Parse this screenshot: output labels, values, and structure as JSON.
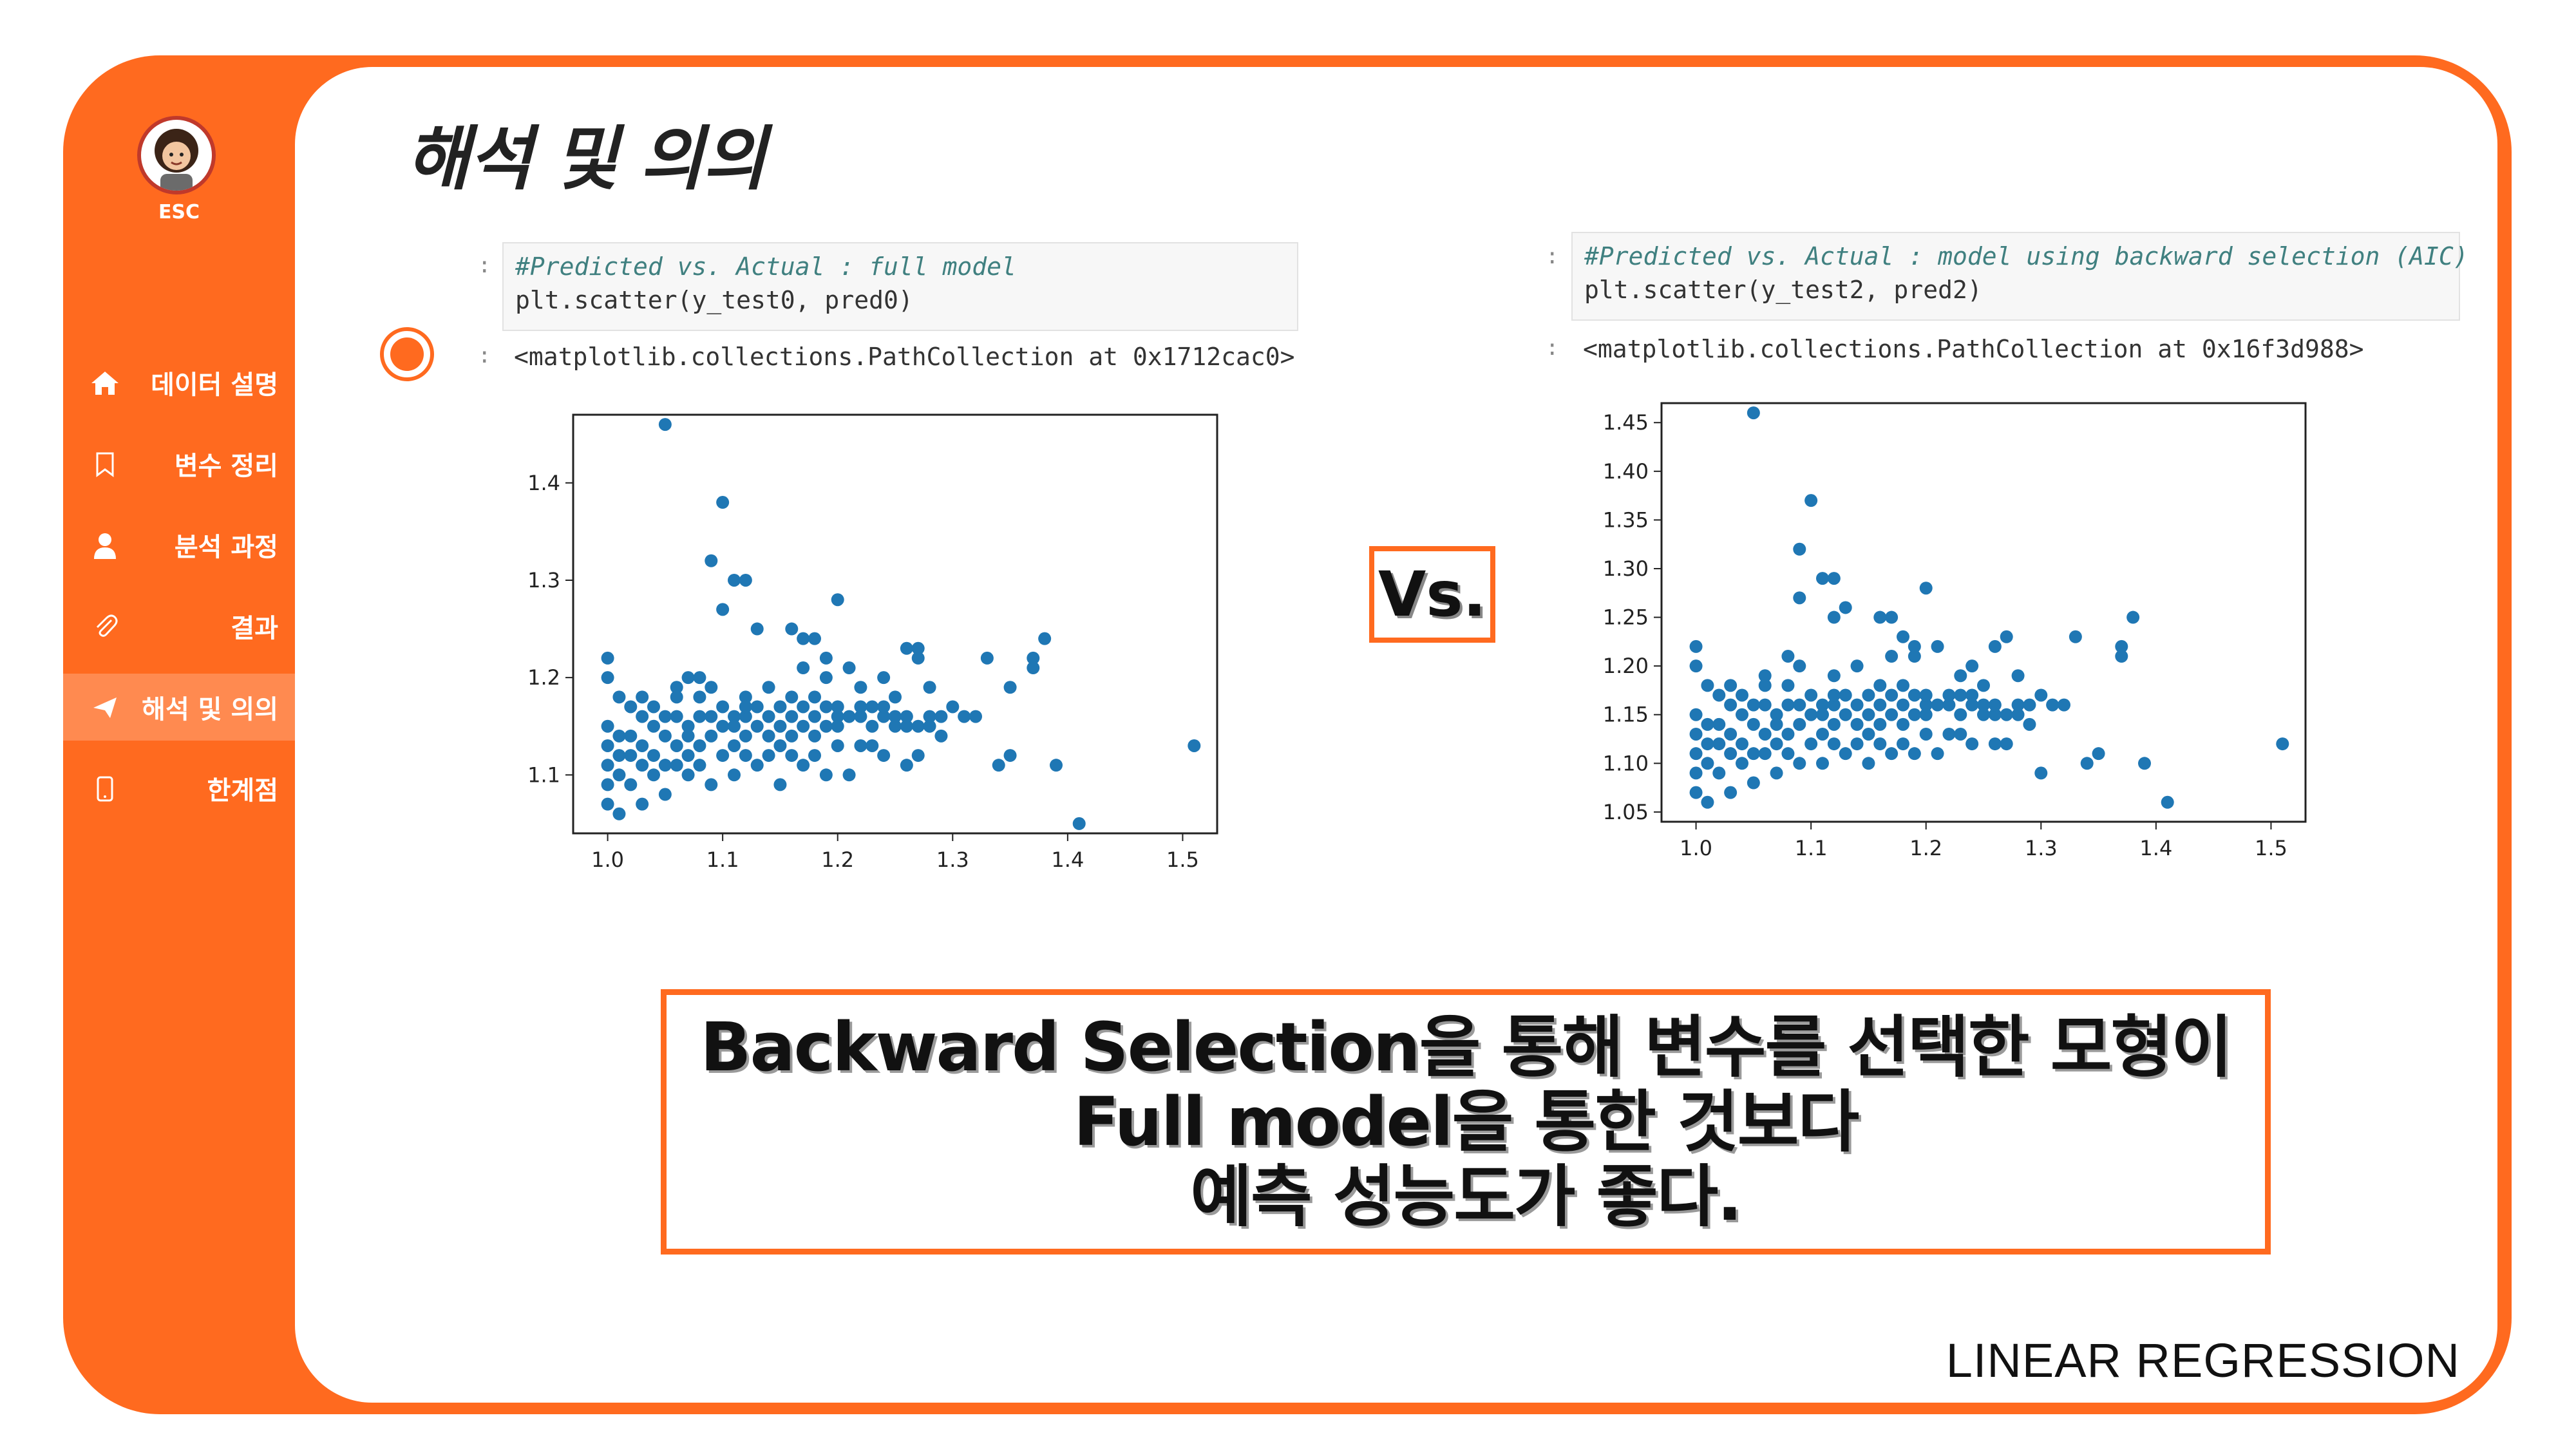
{
  "sidebar": {
    "logo_label": "ESC",
    "items": [
      {
        "icon": "home-icon",
        "label": "데이터 설명"
      },
      {
        "icon": "bookmark-icon",
        "label": "변수 정리"
      },
      {
        "icon": "user-icon",
        "label": "분석 과정"
      },
      {
        "icon": "paperclip-icon",
        "label": "결과"
      },
      {
        "icon": "send-icon",
        "label": "해석 및 의의",
        "active": true
      },
      {
        "icon": "phone-icon",
        "label": "한계점"
      }
    ]
  },
  "page": {
    "title": "해석 및 의의",
    "vs_label": "Vs.",
    "footer": "LINEAR REGRESSION",
    "conclusion": [
      "Backward Selection을 통해 변수를 선택한 모형이",
      "Full model을 통한 것보다",
      "예측 성능도가 좋다."
    ]
  },
  "left_cell": {
    "prompt": ":",
    "comment": "#Predicted vs. Actual : full model",
    "code": "plt.scatter(y_test0, pred0)",
    "output": "<matplotlib.collections.PathCollection at 0x1712cac0>"
  },
  "right_cell": {
    "prompt": ":",
    "comment": "#Predicted vs. Actual : model using backward selection (AIC)",
    "code": "plt.scatter(y_test2, pred2)",
    "output": "<matplotlib.collections.PathCollection at 0x16f3d988>"
  },
  "colors": {
    "accent": "#ff6a1f",
    "point": "#1f77b4"
  },
  "chart_data": [
    {
      "type": "scatter",
      "title": "",
      "xlabel": "",
      "ylabel": "",
      "xlim": [
        0.97,
        1.53
      ],
      "ylim": [
        1.04,
        1.47
      ],
      "xticks": [
        1.0,
        1.1,
        1.2,
        1.3,
        1.4,
        1.5
      ],
      "xtick_labels": [
        "1.0",
        "1.1",
        "1.2",
        "1.3",
        "1.4",
        "1.5"
      ],
      "yticks": [
        1.1,
        1.2,
        1.3,
        1.4
      ],
      "ytick_labels": [
        "1.1",
        "1.2",
        "1.3",
        "1.4"
      ],
      "grid": false,
      "points": [
        [
          1.05,
          1.46
        ],
        [
          1.1,
          1.38
        ],
        [
          1.09,
          1.32
        ],
        [
          1.11,
          1.3
        ],
        [
          1.12,
          1.3
        ],
        [
          1.1,
          1.27
        ],
        [
          1.2,
          1.28
        ],
        [
          1.13,
          1.25
        ],
        [
          1.16,
          1.25
        ],
        [
          1.17,
          1.24
        ],
        [
          1.18,
          1.24
        ],
        [
          1.19,
          1.22
        ],
        [
          1.26,
          1.23
        ],
        [
          1.27,
          1.23
        ],
        [
          1.27,
          1.22
        ],
        [
          1.33,
          1.22
        ],
        [
          1.38,
          1.24
        ],
        [
          1.37,
          1.22
        ],
        [
          1.37,
          1.21
        ],
        [
          1.35,
          1.19
        ],
        [
          1.41,
          1.05
        ],
        [
          1.51,
          1.13
        ],
        [
          1.39,
          1.11
        ],
        [
          1.35,
          1.12
        ],
        [
          1.34,
          1.11
        ],
        [
          1.0,
          1.22
        ],
        [
          1.0,
          1.2
        ],
        [
          1.01,
          1.18
        ],
        [
          1.03,
          1.18
        ],
        [
          1.06,
          1.19
        ],
        [
          1.07,
          1.2
        ],
        [
          1.08,
          1.2
        ],
        [
          1.09,
          1.19
        ],
        [
          1.12,
          1.18
        ],
        [
          1.14,
          1.19
        ],
        [
          1.17,
          1.21
        ],
        [
          1.19,
          1.2
        ],
        [
          1.21,
          1.21
        ],
        [
          1.22,
          1.19
        ],
        [
          1.24,
          1.2
        ],
        [
          1.25,
          1.18
        ],
        [
          1.28,
          1.19
        ],
        [
          1.3,
          1.17
        ],
        [
          1.31,
          1.16
        ],
        [
          1.32,
          1.16
        ],
        [
          1.29,
          1.14
        ],
        [
          1.27,
          1.12
        ],
        [
          1.26,
          1.11
        ],
        [
          1.24,
          1.12
        ],
        [
          1.22,
          1.13
        ],
        [
          1.21,
          1.1
        ],
        [
          1.19,
          1.1
        ],
        [
          1.17,
          1.11
        ],
        [
          1.15,
          1.09
        ],
        [
          1.13,
          1.11
        ],
        [
          1.11,
          1.1
        ],
        [
          1.09,
          1.09
        ],
        [
          1.07,
          1.1
        ],
        [
          1.05,
          1.08
        ],
        [
          1.03,
          1.07
        ],
        [
          1.01,
          1.06
        ],
        [
          1.0,
          1.07
        ],
        [
          1.0,
          1.09
        ],
        [
          1.0,
          1.11
        ],
        [
          1.0,
          1.13
        ],
        [
          1.0,
          1.15
        ],
        [
          1.01,
          1.1
        ],
        [
          1.02,
          1.12
        ],
        [
          1.02,
          1.14
        ],
        [
          1.03,
          1.16
        ],
        [
          1.04,
          1.12
        ],
        [
          1.04,
          1.15
        ],
        [
          1.05,
          1.11
        ],
        [
          1.05,
          1.14
        ],
        [
          1.06,
          1.13
        ],
        [
          1.06,
          1.16
        ],
        [
          1.07,
          1.12
        ],
        [
          1.07,
          1.15
        ],
        [
          1.08,
          1.13
        ],
        [
          1.08,
          1.16
        ],
        [
          1.09,
          1.14
        ],
        [
          1.1,
          1.12
        ],
        [
          1.1,
          1.15
        ],
        [
          1.11,
          1.13
        ],
        [
          1.11,
          1.16
        ],
        [
          1.12,
          1.14
        ],
        [
          1.12,
          1.16
        ],
        [
          1.13,
          1.15
        ],
        [
          1.13,
          1.17
        ],
        [
          1.14,
          1.14
        ],
        [
          1.14,
          1.16
        ],
        [
          1.15,
          1.15
        ],
        [
          1.15,
          1.17
        ],
        [
          1.16,
          1.14
        ],
        [
          1.16,
          1.16
        ],
        [
          1.17,
          1.15
        ],
        [
          1.17,
          1.17
        ],
        [
          1.18,
          1.16
        ],
        [
          1.18,
          1.14
        ],
        [
          1.19,
          1.15
        ],
        [
          1.19,
          1.17
        ],
        [
          1.2,
          1.16
        ],
        [
          1.2,
          1.15
        ],
        [
          1.21,
          1.16
        ],
        [
          1.22,
          1.16
        ],
        [
          1.23,
          1.15
        ],
        [
          1.23,
          1.17
        ],
        [
          1.24,
          1.16
        ],
        [
          1.25,
          1.15
        ],
        [
          1.25,
          1.16
        ],
        [
          1.26,
          1.15
        ],
        [
          1.27,
          1.15
        ],
        [
          1.28,
          1.16
        ],
        [
          1.29,
          1.16
        ],
        [
          1.01,
          1.12
        ],
        [
          1.02,
          1.09
        ],
        [
          1.03,
          1.11
        ],
        [
          1.04,
          1.1
        ],
        [
          1.06,
          1.11
        ],
        [
          1.08,
          1.11
        ],
        [
          1.12,
          1.12
        ],
        [
          1.14,
          1.12
        ],
        [
          1.16,
          1.12
        ],
        [
          1.18,
          1.12
        ],
        [
          1.2,
          1.13
        ],
        [
          1.23,
          1.13
        ],
        [
          1.01,
          1.14
        ],
        [
          1.03,
          1.13
        ],
        [
          1.05,
          1.16
        ],
        [
          1.07,
          1.14
        ],
        [
          1.09,
          1.16
        ],
        [
          1.11,
          1.15
        ],
        [
          1.15,
          1.13
        ],
        [
          1.02,
          1.17
        ],
        [
          1.04,
          1.17
        ],
        [
          1.06,
          1.18
        ],
        [
          1.08,
          1.18
        ],
        [
          1.1,
          1.17
        ],
        [
          1.12,
          1.17
        ],
        [
          1.16,
          1.18
        ],
        [
          1.18,
          1.18
        ],
        [
          1.2,
          1.17
        ],
        [
          1.22,
          1.17
        ],
        [
          1.24,
          1.17
        ],
        [
          1.26,
          1.16
        ],
        [
          1.28,
          1.15
        ]
      ]
    },
    {
      "type": "scatter",
      "title": "",
      "xlabel": "",
      "ylabel": "",
      "xlim": [
        0.97,
        1.53
      ],
      "ylim": [
        1.04,
        1.47
      ],
      "xticks": [
        1.0,
        1.1,
        1.2,
        1.3,
        1.4,
        1.5
      ],
      "xtick_labels": [
        "1.0",
        "1.1",
        "1.2",
        "1.3",
        "1.4",
        "1.5"
      ],
      "yticks": [
        1.05,
        1.1,
        1.15,
        1.2,
        1.25,
        1.3,
        1.35,
        1.4,
        1.45
      ],
      "ytick_labels": [
        "1.05",
        "1.10",
        "1.15",
        "1.20",
        "1.25",
        "1.30",
        "1.35",
        "1.40",
        "1.45"
      ],
      "grid": false,
      "points": [
        [
          1.05,
          1.46
        ],
        [
          1.1,
          1.37
        ],
        [
          1.09,
          1.32
        ],
        [
          1.11,
          1.29
        ],
        [
          1.12,
          1.29
        ],
        [
          1.09,
          1.27
        ],
        [
          1.2,
          1.28
        ],
        [
          1.12,
          1.25
        ],
        [
          1.17,
          1.25
        ],
        [
          1.13,
          1.26
        ],
        [
          1.16,
          1.25
        ],
        [
          1.18,
          1.23
        ],
        [
          1.19,
          1.22
        ],
        [
          1.27,
          1.23
        ],
        [
          1.26,
          1.22
        ],
        [
          1.33,
          1.23
        ],
        [
          1.38,
          1.25
        ],
        [
          1.37,
          1.22
        ],
        [
          1.37,
          1.21
        ],
        [
          1.41,
          1.06
        ],
        [
          1.51,
          1.12
        ],
        [
          1.39,
          1.1
        ],
        [
          1.35,
          1.11
        ],
        [
          1.34,
          1.1
        ],
        [
          1.3,
          1.09
        ],
        [
          1.0,
          1.22
        ],
        [
          1.0,
          1.2
        ],
        [
          1.01,
          1.18
        ],
        [
          1.03,
          1.18
        ],
        [
          1.06,
          1.19
        ],
        [
          1.08,
          1.21
        ],
        [
          1.09,
          1.2
        ],
        [
          1.12,
          1.19
        ],
        [
          1.14,
          1.2
        ],
        [
          1.17,
          1.21
        ],
        [
          1.19,
          1.21
        ],
        [
          1.21,
          1.22
        ],
        [
          1.23,
          1.19
        ],
        [
          1.24,
          1.2
        ],
        [
          1.25,
          1.18
        ],
        [
          1.28,
          1.19
        ],
        [
          1.3,
          1.17
        ],
        [
          1.31,
          1.16
        ],
        [
          1.32,
          1.16
        ],
        [
          1.29,
          1.14
        ],
        [
          1.27,
          1.12
        ],
        [
          1.26,
          1.12
        ],
        [
          1.24,
          1.12
        ],
        [
          1.22,
          1.13
        ],
        [
          1.21,
          1.11
        ],
        [
          1.19,
          1.11
        ],
        [
          1.17,
          1.11
        ],
        [
          1.15,
          1.1
        ],
        [
          1.13,
          1.11
        ],
        [
          1.11,
          1.1
        ],
        [
          1.09,
          1.1
        ],
        [
          1.07,
          1.09
        ],
        [
          1.05,
          1.08
        ],
        [
          1.03,
          1.07
        ],
        [
          1.01,
          1.06
        ],
        [
          1.0,
          1.07
        ],
        [
          1.0,
          1.09
        ],
        [
          1.0,
          1.11
        ],
        [
          1.0,
          1.13
        ],
        [
          1.0,
          1.15
        ],
        [
          1.01,
          1.1
        ],
        [
          1.02,
          1.12
        ],
        [
          1.02,
          1.14
        ],
        [
          1.03,
          1.16
        ],
        [
          1.04,
          1.12
        ],
        [
          1.04,
          1.15
        ],
        [
          1.05,
          1.11
        ],
        [
          1.05,
          1.14
        ],
        [
          1.06,
          1.13
        ],
        [
          1.06,
          1.16
        ],
        [
          1.07,
          1.12
        ],
        [
          1.07,
          1.15
        ],
        [
          1.08,
          1.13
        ],
        [
          1.08,
          1.16
        ],
        [
          1.09,
          1.14
        ],
        [
          1.1,
          1.12
        ],
        [
          1.1,
          1.15
        ],
        [
          1.11,
          1.13
        ],
        [
          1.11,
          1.16
        ],
        [
          1.12,
          1.14
        ],
        [
          1.12,
          1.16
        ],
        [
          1.13,
          1.15
        ],
        [
          1.13,
          1.17
        ],
        [
          1.14,
          1.14
        ],
        [
          1.14,
          1.16
        ],
        [
          1.15,
          1.15
        ],
        [
          1.15,
          1.17
        ],
        [
          1.16,
          1.14
        ],
        [
          1.16,
          1.16
        ],
        [
          1.17,
          1.15
        ],
        [
          1.17,
          1.17
        ],
        [
          1.18,
          1.16
        ],
        [
          1.18,
          1.14
        ],
        [
          1.19,
          1.15
        ],
        [
          1.19,
          1.17
        ],
        [
          1.2,
          1.16
        ],
        [
          1.2,
          1.15
        ],
        [
          1.21,
          1.16
        ],
        [
          1.22,
          1.16
        ],
        [
          1.23,
          1.15
        ],
        [
          1.23,
          1.17
        ],
        [
          1.24,
          1.16
        ],
        [
          1.25,
          1.15
        ],
        [
          1.25,
          1.16
        ],
        [
          1.26,
          1.15
        ],
        [
          1.27,
          1.15
        ],
        [
          1.28,
          1.16
        ],
        [
          1.29,
          1.16
        ],
        [
          1.01,
          1.12
        ],
        [
          1.02,
          1.09
        ],
        [
          1.03,
          1.11
        ],
        [
          1.04,
          1.1
        ],
        [
          1.06,
          1.11
        ],
        [
          1.08,
          1.11
        ],
        [
          1.12,
          1.12
        ],
        [
          1.14,
          1.12
        ],
        [
          1.16,
          1.12
        ],
        [
          1.18,
          1.12
        ],
        [
          1.2,
          1.13
        ],
        [
          1.23,
          1.13
        ],
        [
          1.01,
          1.14
        ],
        [
          1.03,
          1.13
        ],
        [
          1.05,
          1.16
        ],
        [
          1.07,
          1.14
        ],
        [
          1.09,
          1.16
        ],
        [
          1.11,
          1.15
        ],
        [
          1.15,
          1.13
        ],
        [
          1.02,
          1.17
        ],
        [
          1.04,
          1.17
        ],
        [
          1.06,
          1.18
        ],
        [
          1.08,
          1.18
        ],
        [
          1.1,
          1.17
        ],
        [
          1.12,
          1.17
        ],
        [
          1.16,
          1.18
        ],
        [
          1.18,
          1.18
        ],
        [
          1.2,
          1.17
        ],
        [
          1.22,
          1.17
        ],
        [
          1.24,
          1.17
        ],
        [
          1.26,
          1.16
        ],
        [
          1.28,
          1.15
        ]
      ]
    }
  ]
}
